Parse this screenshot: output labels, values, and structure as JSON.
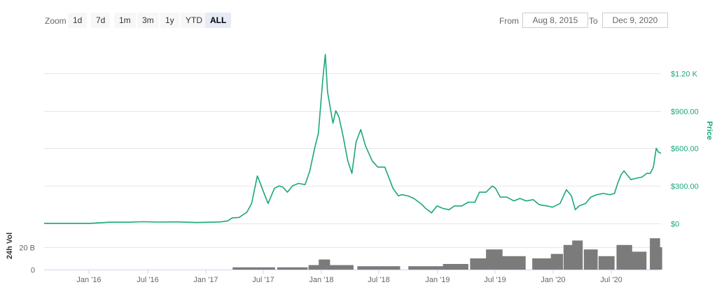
{
  "toolbar": {
    "zoom_label": "Zoom",
    "zoom_buttons": [
      "1d",
      "7d",
      "1m",
      "3m",
      "1y",
      "YTD",
      "ALL"
    ],
    "active_zoom": "ALL",
    "from_label": "From",
    "from_value": "Aug 8, 2015",
    "to_label": "To",
    "to_value": "Dec 9, 2020"
  },
  "colors": {
    "price": "#1aa67e",
    "volume": "#7b7b7b",
    "grid": "#e6e6e6",
    "axis_text": "#666666"
  },
  "chart_data": [
    {
      "type": "line",
      "title": "",
      "ylabel": "Price",
      "ylabel_side": "right",
      "ylim": [
        0,
        1500
      ],
      "yticks": [
        0,
        300,
        600,
        900,
        1200
      ],
      "ytick_labels": [
        "$0",
        "$300.00",
        "$600.00",
        "$900.00",
        "$1.20 K"
      ],
      "grid": true,
      "series": [
        {
          "x": [
            "2015-08-08",
            "2015-10-01",
            "2015-12-01",
            "2016-01-01",
            "2016-03-01",
            "2016-05-01",
            "2016-06-15",
            "2016-08-01",
            "2016-10-01",
            "2016-12-01",
            "2017-01-15",
            "2017-02-15",
            "2017-03-10",
            "2017-03-25",
            "2017-04-15",
            "2017-05-10",
            "2017-05-25",
            "2017-06-12",
            "2017-06-20",
            "2017-07-05",
            "2017-07-16",
            "2017-08-05",
            "2017-08-20",
            "2017-09-01",
            "2017-09-15",
            "2017-10-01",
            "2017-10-20",
            "2017-11-10",
            "2017-11-25",
            "2017-12-10",
            "2017-12-22",
            "2018-01-05",
            "2018-01-13",
            "2018-01-20",
            "2018-02-06",
            "2018-02-15",
            "2018-02-25",
            "2018-03-10",
            "2018-03-25",
            "2018-04-07",
            "2018-04-20",
            "2018-05-05",
            "2018-05-20",
            "2018-06-10",
            "2018-06-28",
            "2018-07-20",
            "2018-08-15",
            "2018-09-01",
            "2018-09-12",
            "2018-10-01",
            "2018-10-20",
            "2018-11-15",
            "2018-11-26",
            "2018-12-15",
            "2019-01-01",
            "2019-01-20",
            "2019-02-08",
            "2019-02-25",
            "2019-03-20",
            "2019-04-10",
            "2019-05-01",
            "2019-05-15",
            "2019-06-05",
            "2019-06-25",
            "2019-07-05",
            "2019-07-20",
            "2019-08-10",
            "2019-09-01",
            "2019-09-20",
            "2019-10-10",
            "2019-11-01",
            "2019-11-20",
            "2019-12-15",
            "2020-01-01",
            "2020-01-25",
            "2020-02-14",
            "2020-03-01",
            "2020-03-13",
            "2020-03-25",
            "2020-04-15",
            "2020-05-01",
            "2020-05-20",
            "2020-06-10",
            "2020-06-30",
            "2020-07-15",
            "2020-07-25",
            "2020-08-05",
            "2020-08-14",
            "2020-09-05",
            "2020-09-20",
            "2020-10-10",
            "2020-10-25",
            "2020-11-05",
            "2020-11-15",
            "2020-11-24",
            "2020-12-01",
            "2020-12-09"
          ],
          "y": [
            1,
            1,
            1,
            1,
            10,
            10,
            14,
            11,
            12,
            8,
            10,
            12,
            20,
            45,
            48,
            90,
            160,
            380,
            330,
            230,
            160,
            280,
            300,
            290,
            250,
            300,
            320,
            310,
            420,
            600,
            720,
            1150,
            1350,
            1050,
            800,
            900,
            850,
            700,
            500,
            400,
            650,
            750,
            620,
            500,
            450,
            450,
            280,
            220,
            230,
            220,
            200,
            150,
            120,
            85,
            140,
            120,
            110,
            140,
            140,
            170,
            170,
            250,
            250,
            300,
            280,
            210,
            210,
            180,
            200,
            180,
            190,
            150,
            140,
            130,
            160,
            270,
            220,
            110,
            140,
            160,
            210,
            230,
            240,
            230,
            240,
            320,
            390,
            420,
            350,
            360,
            370,
            400,
            400,
            450,
            600,
            570,
            560
          ]
        }
      ]
    },
    {
      "type": "bar",
      "title": "",
      "ylabel": "24h Vol",
      "ylabel_side": "left",
      "ylim": [
        0,
        40
      ],
      "yticks": [
        0,
        20
      ],
      "ytick_labels": [
        "0",
        "20 B"
      ],
      "x_tick_labels": [
        "Jan '16",
        "Jul '16",
        "Jan '17",
        "Jul '17",
        "Jan '18",
        "Jul '18",
        "Jan '19",
        "Jul '19",
        "Jan '20",
        "Jul '20"
      ],
      "grid": true,
      "series": [
        {
          "x": [
            "2015-08-08",
            "2016-06-01",
            "2017-01-01",
            "2017-06-01",
            "2017-10-01",
            "2017-12-15",
            "2018-01-10",
            "2018-03-01",
            "2018-07-01",
            "2018-12-01",
            "2019-03-01",
            "2019-05-15",
            "2019-07-01",
            "2019-09-01",
            "2019-12-01",
            "2020-01-15",
            "2020-02-20",
            "2020-03-20",
            "2020-05-01",
            "2020-06-20",
            "2020-08-15",
            "2020-10-01",
            "2020-11-20",
            "2020-12-09"
          ],
          "y": [
            0,
            0,
            0,
            2,
            2,
            4,
            9,
            4,
            3,
            3,
            5,
            10,
            18,
            12,
            10,
            14,
            22,
            26,
            18,
            12,
            22,
            16,
            28,
            20
          ]
        }
      ]
    }
  ]
}
